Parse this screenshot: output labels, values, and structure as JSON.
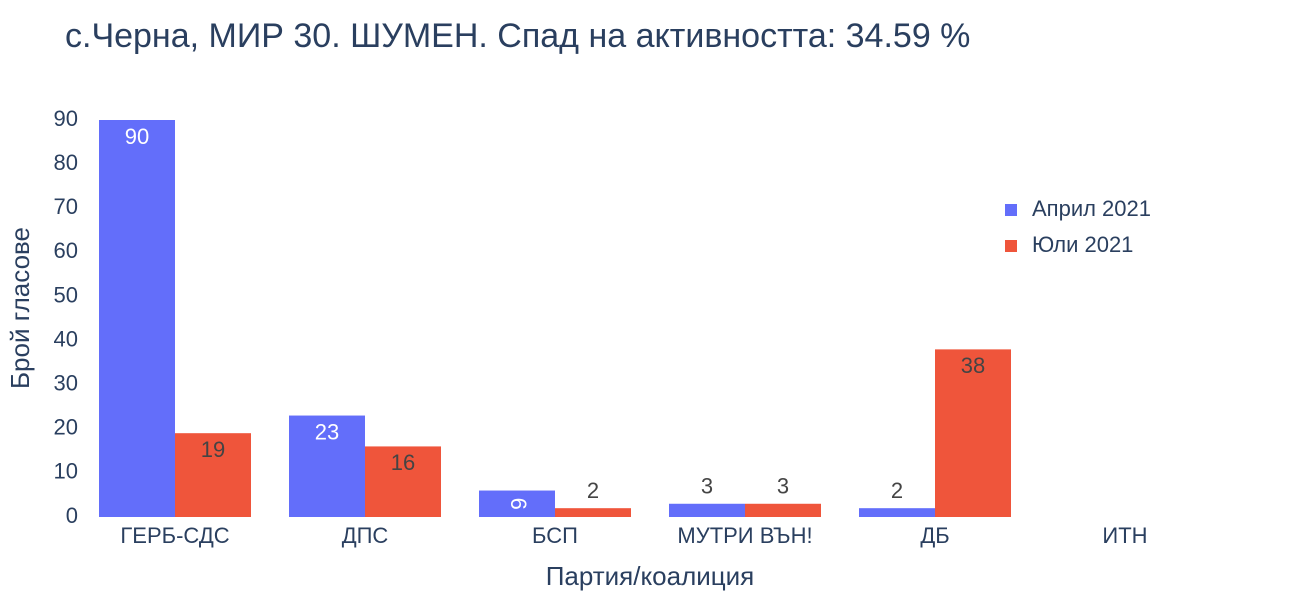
{
  "chart_data": {
    "type": "bar",
    "title": "с.Черна, МИР 30. ШУМЕН. Спад на активността: 34.59 %",
    "x_label": "Партия/коалиция",
    "y_label": "Брой гласове",
    "categories": [
      "ГЕРБ-СДС",
      "ДПС",
      "БСП",
      "МУТРИ ВЪН!",
      "ДБ",
      "ИТН"
    ],
    "series": [
      {
        "name": "Април 2021",
        "color": "#636efa",
        "values": [
          90,
          23,
          6,
          3,
          2,
          0
        ]
      },
      {
        "name": "Юли 2021",
        "color": "#ef553b",
        "values": [
          19,
          16,
          2,
          3,
          38,
          0
        ]
      }
    ],
    "ylim": [
      0,
      90
    ],
    "yticks": [
      0,
      10,
      20,
      30,
      40,
      50,
      60,
      70,
      80,
      90
    ],
    "legend": "upper right"
  }
}
